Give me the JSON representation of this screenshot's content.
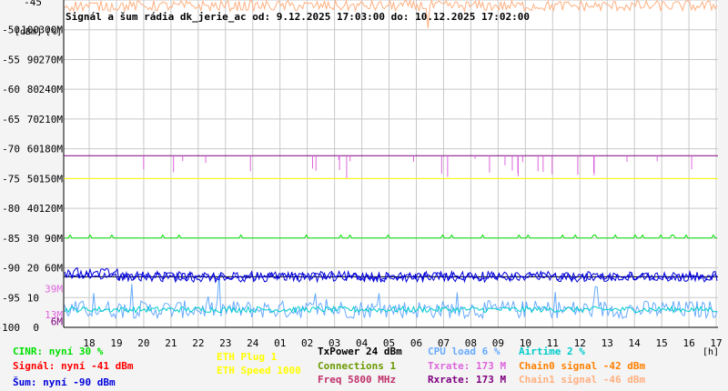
{
  "title": "Signál a šum rádia dk_jerie_ac od: 9.12.2025 17:03:00 do: 10.12.2025 17:02:00",
  "colors": {
    "background": "#f4f4f4",
    "plot": "#ffffff",
    "grid": "#c8c8c8",
    "cinr": "#00e000",
    "signal": "#ff0000",
    "noise": "#0000dd",
    "eth_plug": "#ffff00",
    "eth_speed": "#ffff00",
    "txpower": "#000000",
    "connections": "#6a9a00",
    "freq": "#c0306a",
    "cpu": "#66aaff",
    "txrate": "#dd66dd",
    "rxrate": "#800080",
    "airtime": "#00cccc",
    "chain0": "#ff8000",
    "chain1": "#ffb080"
  },
  "chart_data": {
    "type": "line",
    "title": "Signál a šum rádia dk_jerie_ac od: 9.12.2025 17:03:00 do: 10.12.2025 17:02:00",
    "x_ticks": [
      "18",
      "19",
      "20",
      "21",
      "22",
      "23",
      "24",
      "01",
      "02",
      "03",
      "04",
      "05",
      "06",
      "07",
      "08",
      "09",
      "10",
      "11",
      "12",
      "13",
      "14",
      "15",
      "16",
      "17"
    ],
    "x_unit": "[h]",
    "y_axes": [
      {
        "unit": "[dBm]",
        "ticks": [
          "-45",
          "-50",
          "-55",
          "-60",
          "-65",
          "-70",
          "-75",
          "-80",
          "-85",
          "-90",
          "-95",
          "-100"
        ],
        "range": [
          -100,
          -45
        ]
      },
      {
        "unit": "[%]",
        "ticks": [
          "100",
          "90",
          "80",
          "70",
          "60",
          "50",
          "40",
          "30",
          "20",
          "10",
          "0"
        ],
        "range": [
          0,
          110
        ]
      },
      {
        "unit": "",
        "ticks": [
          "300M",
          "270M",
          "240M",
          "210M",
          "180M",
          "150M",
          "120M",
          "90M",
          "60M"
        ],
        "range": [
          0,
          330000000
        ]
      }
    ],
    "y_axes_extra_ticks": [
      {
        "label": "39M",
        "color": "#dd66dd"
      },
      {
        "label": "13M",
        "color": "#dd66dd"
      },
      {
        "label": "6M",
        "color": "#800080"
      }
    ],
    "grid": true,
    "series": [
      {
        "name": "Signál",
        "axis": "dBm",
        "pattern": "around -41 dBm, dense red band at the top of the plot"
      },
      {
        "name": "Chain0 signal",
        "axis": "dBm",
        "pattern": "around -42 dBm"
      },
      {
        "name": "Chain1 signal",
        "axis": "dBm",
        "pattern": "around -46 dBm"
      },
      {
        "name": "Šum",
        "axis": "dBm",
        "pattern": "around -90 to -91 dBm"
      },
      {
        "name": "CINR",
        "axis": "%",
        "pattern": "flat near 30"
      },
      {
        "name": "Txrate",
        "axis": "rate",
        "pattern": "about 173M with drops toward 150M"
      },
      {
        "name": "Rxrate",
        "axis": "rate",
        "pattern": "flat at 173M"
      },
      {
        "name": "CPU load",
        "axis": "%",
        "pattern": "noisy 0-10"
      },
      {
        "name": "ETH Speed",
        "axis": "rate",
        "pattern": "flat at about 150M"
      }
    ]
  },
  "legend": {
    "col1": [
      "CINR: nyní 30 %",
      "Signál: nyní -41 dBm",
      "Šum: nyní -90 dBm"
    ],
    "col2": [
      "ETH Plug 1",
      "ETH Speed 1000"
    ],
    "col3": [
      "TxPower 24 dBm",
      "Connections 1",
      "Freq 5800 MHz"
    ],
    "col4": [
      "CPU load 6 %",
      "Txrate: 173 M",
      "Rxrate: 173 M"
    ],
    "col5": [
      "Airtime 2 %",
      "Chain0 signal -42 dBm",
      "Chain1 signal -46 dBm"
    ]
  }
}
